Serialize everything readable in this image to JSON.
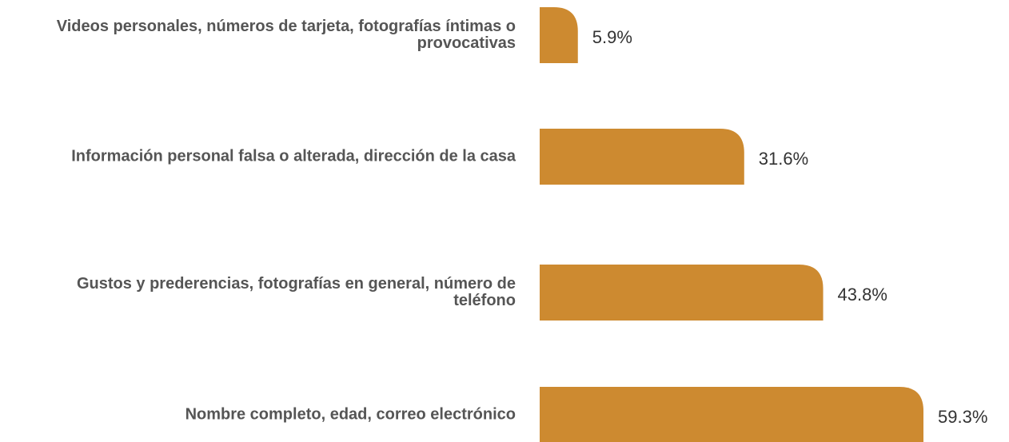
{
  "chart_data": {
    "type": "barh",
    "categories": [
      "Videos personales, números de tarjeta, fotografías íntimas o provocativas",
      "Información personal falsa o alterada, dirección de la casa",
      "Gustos y prederencias, fotografías en general, número de teléfono",
      "Nombre completo, edad, correo electrónico"
    ],
    "values": [
      5.9,
      31.6,
      43.8,
      59.3
    ],
    "value_labels": [
      "5.9%",
      "31.6%",
      "43.8%",
      "59.3%"
    ],
    "color": "#cd8a30"
  }
}
